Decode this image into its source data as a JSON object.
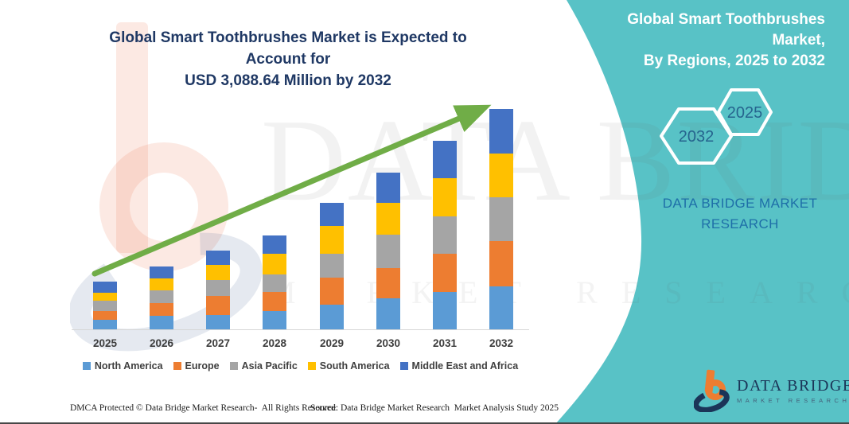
{
  "header": {
    "title_line1": "Global Smart Toothbrushes Market is Expected to Account for",
    "title_line2": "USD 3,088.64 Million by 2032"
  },
  "side_panel": {
    "background_color": "#58c2c6",
    "title_line1": "Global Smart Toothbrushes Market,",
    "title_line2": "By Regions, 2025 to 2032",
    "hexagons": [
      {
        "label": "2032"
      },
      {
        "label": "2025"
      }
    ],
    "brand_line1": "DATA BRIDGE MARKET",
    "brand_line2": "RESEARCH"
  },
  "watermark": {
    "line1": "DATA BRIDGE",
    "line2": "MARKET RESEARCH"
  },
  "logo": {
    "name": "DATA BRIDGE",
    "subtitle": "MARKET RESEARCH",
    "icon": "data-bridge-b-logo",
    "colors": {
      "orange": "#ED7D31",
      "navy": "#1b3558"
    }
  },
  "footer": {
    "left": "DMCA Protected © Data Bridge Market Research-  All Rights Reserved.",
    "right": "Source: Data Bridge Market Research  Market Analysis Study 2025"
  },
  "chart_data": {
    "type": "bar",
    "stacked": true,
    "title": "Global Smart Toothbrushes Market is Expected to Account for USD 3,088.64 Million by 2032",
    "unit": "USD Million",
    "categories": [
      "2025",
      "2026",
      "2027",
      "2028",
      "2029",
      "2030",
      "2031",
      "2032"
    ],
    "series": [
      {
        "name": "North America",
        "color": "#5B9BD5",
        "values": [
          139,
          190,
          206,
          262,
          351,
          435,
          530,
          608
        ]
      },
      {
        "name": "Europe",
        "color": "#ED7D31",
        "values": [
          123,
          184,
          262,
          268,
          379,
          424,
          530,
          636
        ]
      },
      {
        "name": "Asia Pacific",
        "color": "#A5A5A5",
        "values": [
          145,
          173,
          223,
          240,
          329,
          468,
          524,
          613
        ]
      },
      {
        "name": "South America",
        "color": "#FFC000",
        "values": [
          106,
          167,
          212,
          290,
          390,
          446,
          541,
          608
        ]
      },
      {
        "name": "Middle East and Africa",
        "color": "#4472C4",
        "values": [
          156,
          167,
          201,
          262,
          323,
          429,
          524,
          624
        ]
      }
    ],
    "totals_note_2032": 3088.64,
    "ylim": [
      0,
      3300
    ],
    "grid": false,
    "legend_position": "bottom",
    "trend_arrow": {
      "color": "#70AD47",
      "direction": "up-right"
    }
  }
}
